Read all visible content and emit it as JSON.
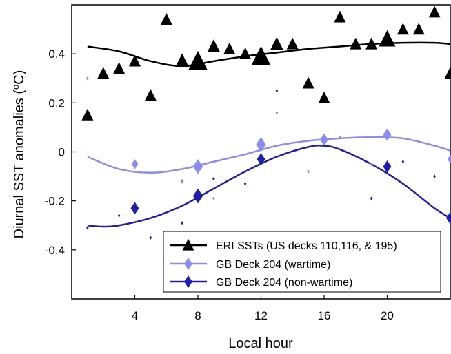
{
  "chart_data": {
    "type": "scatter",
    "xlabel": "Local hour",
    "ylabel": "Diurnal SST anomalies (oC)",
    "xlim": [
      0,
      24
    ],
    "ylim": [
      -0.6,
      0.6
    ],
    "x_ticks": [
      4,
      8,
      12,
      16,
      20
    ],
    "x_tick_labels": [
      "4",
      "8",
      "12",
      "16",
      "20"
    ],
    "y_ticks": [
      -0.4,
      -0.2,
      0,
      0.2,
      0.4
    ],
    "y_tick_labels": [
      "-0.4",
      "-0.2",
      "0",
      "0.2",
      "0.4"
    ],
    "grid": false,
    "legend_position": "bottom-right",
    "series": [
      {
        "name": "ERI SSTs (US decks 110,116, & 195)",
        "color": "#000000",
        "marker": "triangle",
        "points": [
          {
            "x": 1,
            "y": 0.15,
            "s": 1.0
          },
          {
            "x": 2,
            "y": 0.32,
            "s": 1.0
          },
          {
            "x": 3,
            "y": 0.34,
            "s": 1.0
          },
          {
            "x": 4,
            "y": 0.37,
            "s": 1.0
          },
          {
            "x": 5,
            "y": 0.23,
            "s": 1.0
          },
          {
            "x": 6,
            "y": 0.54,
            "s": 1.0
          },
          {
            "x": 7,
            "y": 0.37,
            "s": 1.2
          },
          {
            "x": 8,
            "y": 0.37,
            "s": 1.6
          },
          {
            "x": 9,
            "y": 0.43,
            "s": 1.1
          },
          {
            "x": 10,
            "y": 0.42,
            "s": 1.0
          },
          {
            "x": 11,
            "y": 0.4,
            "s": 1.0
          },
          {
            "x": 12,
            "y": 0.39,
            "s": 1.6
          },
          {
            "x": 13,
            "y": 0.44,
            "s": 1.1
          },
          {
            "x": 14,
            "y": 0.44,
            "s": 1.0
          },
          {
            "x": 15,
            "y": 0.28,
            "s": 1.0
          },
          {
            "x": 16,
            "y": 0.22,
            "s": 1.0
          },
          {
            "x": 17,
            "y": 0.55,
            "s": 1.0
          },
          {
            "x": 18,
            "y": 0.44,
            "s": 1.0
          },
          {
            "x": 19,
            "y": 0.44,
            "s": 1.0
          },
          {
            "x": 20,
            "y": 0.46,
            "s": 1.4
          },
          {
            "x": 21,
            "y": 0.5,
            "s": 1.0
          },
          {
            "x": 22,
            "y": 0.5,
            "s": 1.0
          },
          {
            "x": 23,
            "y": 0.57,
            "s": 1.0
          },
          {
            "x": 24,
            "y": 0.32,
            "s": 1.0
          }
        ],
        "trend": [
          [
            1,
            0.43
          ],
          [
            3,
            0.41
          ],
          [
            5,
            0.37
          ],
          [
            7,
            0.35
          ],
          [
            9,
            0.37
          ],
          [
            11,
            0.39
          ],
          [
            13,
            0.405
          ],
          [
            15,
            0.42
          ],
          [
            17,
            0.43
          ],
          [
            19,
            0.44
          ],
          [
            21,
            0.445
          ],
          [
            23,
            0.445
          ],
          [
            24,
            0.44
          ]
        ]
      },
      {
        "name": "GB Deck 204 (wartime)",
        "color": "#8c8cf0",
        "marker": "diamond",
        "points": [
          {
            "x": 1,
            "y": 0.3,
            "s": 0.3
          },
          {
            "x": 4,
            "y": -0.05,
            "s": 0.8
          },
          {
            "x": 7,
            "y": -0.12,
            "s": 0.4
          },
          {
            "x": 8,
            "y": -0.06,
            "s": 1.2
          },
          {
            "x": 9,
            "y": -0.19,
            "s": 0.3
          },
          {
            "x": 12,
            "y": 0.03,
            "s": 1.2
          },
          {
            "x": 13,
            "y": 0.16,
            "s": 0.3
          },
          {
            "x": 15,
            "y": -0.08,
            "s": 0.3
          },
          {
            "x": 16,
            "y": 0.05,
            "s": 1.0
          },
          {
            "x": 17,
            "y": 0.06,
            "s": 0.3
          },
          {
            "x": 19,
            "y": -0.05,
            "s": 0.3
          },
          {
            "x": 20,
            "y": 0.07,
            "s": 1.0
          },
          {
            "x": 24,
            "y": -0.03,
            "s": 0.7
          }
        ],
        "trend": [
          [
            1,
            -0.02
          ],
          [
            3,
            -0.07
          ],
          [
            5,
            -0.085
          ],
          [
            7,
            -0.07
          ],
          [
            9,
            -0.04
          ],
          [
            11,
            -0.01
          ],
          [
            13,
            0.025
          ],
          [
            15,
            0.045
          ],
          [
            17,
            0.055
          ],
          [
            19,
            0.06
          ],
          [
            21,
            0.055
          ],
          [
            23,
            0.025
          ],
          [
            24,
            0.005
          ]
        ]
      },
      {
        "name": "GB Deck 204 (non-wartime)",
        "color": "#1e1ea8",
        "marker": "diamond",
        "points": [
          {
            "x": 1,
            "y": -0.31,
            "s": 0.3
          },
          {
            "x": 3,
            "y": -0.26,
            "s": 0.3
          },
          {
            "x": 4,
            "y": -0.23,
            "s": 1.0
          },
          {
            "x": 5,
            "y": -0.35,
            "s": 0.3
          },
          {
            "x": 7,
            "y": -0.29,
            "s": 0.3
          },
          {
            "x": 8,
            "y": -0.18,
            "s": 1.2
          },
          {
            "x": 9,
            "y": -0.11,
            "s": 0.3
          },
          {
            "x": 11,
            "y": -0.13,
            "s": 0.3
          },
          {
            "x": 12,
            "y": -0.03,
            "s": 1.0
          },
          {
            "x": 13,
            "y": 0.25,
            "s": 0.3
          },
          {
            "x": 19,
            "y": -0.19,
            "s": 0.3
          },
          {
            "x": 20,
            "y": -0.06,
            "s": 1.0
          },
          {
            "x": 21,
            "y": -0.04,
            "s": 0.3
          },
          {
            "x": 23,
            "y": -0.1,
            "s": 0.3
          },
          {
            "x": 24,
            "y": -0.27,
            "s": 1.0
          }
        ],
        "trend": [
          [
            1,
            -0.3
          ],
          [
            2,
            -0.305
          ],
          [
            3,
            -0.3
          ],
          [
            5,
            -0.27
          ],
          [
            7,
            -0.22
          ],
          [
            9,
            -0.15
          ],
          [
            11,
            -0.08
          ],
          [
            13,
            -0.02
          ],
          [
            15,
            0.02
          ],
          [
            16,
            0.025
          ],
          [
            17,
            0.01
          ],
          [
            19,
            -0.05
          ],
          [
            21,
            -0.13
          ],
          [
            23,
            -0.23
          ],
          [
            24,
            -0.27
          ]
        ]
      }
    ]
  }
}
